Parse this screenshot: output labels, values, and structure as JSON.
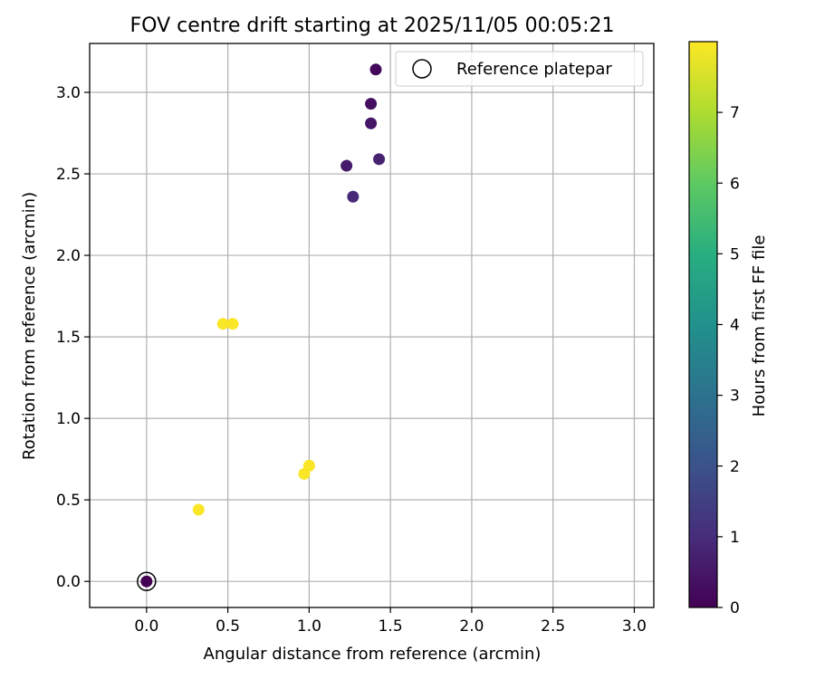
{
  "chart_data": {
    "type": "scatter",
    "title": "FOV centre drift starting at 2025/11/05 00:05:21",
    "xlabel": "Angular distance from reference (arcmin)",
    "ylabel": "Rotation from reference (arcmin)",
    "xlim": [
      -0.35,
      3.12
    ],
    "ylim": [
      -0.16,
      3.3
    ],
    "x_ticks": [
      0.0,
      0.5,
      1.0,
      1.5,
      2.0,
      2.5,
      3.0
    ],
    "x_tick_labels": [
      "0.0",
      "0.5",
      "1.0",
      "1.5",
      "2.0",
      "2.5",
      "3.0"
    ],
    "y_ticks": [
      0.0,
      0.5,
      1.0,
      1.5,
      2.0,
      2.5,
      3.0
    ],
    "y_tick_labels": [
      "0.0",
      "0.5",
      "1.0",
      "1.5",
      "2.0",
      "2.5",
      "3.0"
    ],
    "grid": true,
    "legend": {
      "location": "top-right",
      "label": "Reference platepar"
    },
    "colorbar": {
      "label": "Hours from first FF file",
      "range": [
        0,
        8
      ],
      "ticks": [
        0,
        1,
        2,
        3,
        4,
        5,
        6,
        7
      ],
      "tick_labels": [
        "0",
        "1",
        "2",
        "3",
        "4",
        "5",
        "6",
        "7"
      ],
      "colormap": "viridis"
    },
    "reference": {
      "x": 0.0,
      "y": 0.0
    },
    "points": [
      {
        "x": 0.0,
        "y": 0.0,
        "hours": 0.0
      },
      {
        "x": 1.41,
        "y": 3.14,
        "hours": 0.15
      },
      {
        "x": 1.38,
        "y": 2.93,
        "hours": 0.3
      },
      {
        "x": 1.38,
        "y": 2.81,
        "hours": 0.45
      },
      {
        "x": 1.23,
        "y": 2.55,
        "hours": 0.6
      },
      {
        "x": 1.43,
        "y": 2.59,
        "hours": 0.75
      },
      {
        "x": 1.27,
        "y": 2.36,
        "hours": 0.9
      },
      {
        "x": 0.47,
        "y": 1.58,
        "hours": 7.95
      },
      {
        "x": 0.53,
        "y": 1.58,
        "hours": 7.95
      },
      {
        "x": 0.97,
        "y": 0.66,
        "hours": 7.95
      },
      {
        "x": 1.0,
        "y": 0.71,
        "hours": 7.95
      },
      {
        "x": 0.32,
        "y": 0.44,
        "hours": 7.95
      }
    ]
  }
}
